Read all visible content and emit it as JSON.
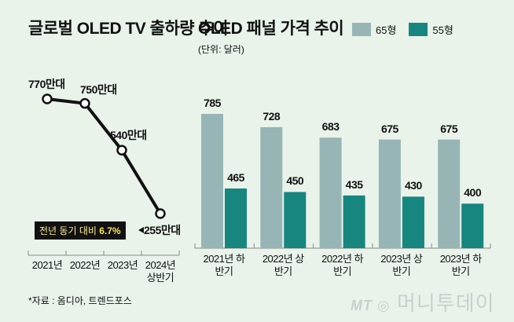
{
  "chart_data": [
    {
      "type": "line",
      "title": "글로벌 OLED TV 출하량 추이",
      "categories": [
        "2021년",
        "2022년",
        "2023년",
        "2024년 상반기"
      ],
      "values": [
        770,
        750,
        540,
        255
      ],
      "data_labels": [
        "770만대",
        "750만대",
        "540만대",
        "255만대"
      ],
      "value_unit": "만대",
      "annotation": {
        "prefix": "전년 동기 대비 ",
        "value": "6.7%"
      }
    },
    {
      "type": "bar",
      "title": "OLED 패널 가격 추이",
      "subtitle": "(단위: 달러)",
      "categories": [
        "2021년 하반기",
        "2022년 상반기",
        "2022년 하반기",
        "2023년 상반기",
        "2023년 하반기"
      ],
      "series": [
        {
          "name": "65형",
          "values": [
            785,
            728,
            683,
            675,
            675
          ],
          "color": "#97b5b5"
        },
        {
          "name": "55형",
          "values": [
            465,
            450,
            435,
            430,
            400
          ],
          "color": "#16867f"
        }
      ],
      "legend": "top-right"
    }
  ],
  "source": "*자료 : 옴디아, 트렌드포스",
  "logo": {
    "mt": "MT",
    "name": "머니투데이"
  }
}
